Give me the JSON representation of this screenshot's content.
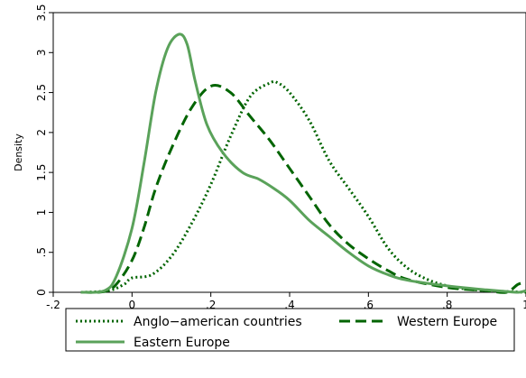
{
  "chart_data": {
    "type": "line",
    "title": "",
    "xlabel": "",
    "ylabel": "Density",
    "xlim": [
      -0.2,
      1.0
    ],
    "ylim": [
      0,
      3.5
    ],
    "x_ticks": [
      -0.2,
      0,
      0.2,
      0.4,
      0.6,
      0.8,
      1.0
    ],
    "x_tick_labels": [
      "-.2",
      "0",
      ".2",
      ".4",
      ".6",
      ".8",
      "1"
    ],
    "y_ticks": [
      0,
      0.5,
      1,
      1.5,
      2,
      2.5,
      3,
      3.5
    ],
    "y_tick_labels": [
      "0",
      ".5",
      "1",
      "1.5",
      "2",
      "2.5",
      "3",
      "3.5"
    ],
    "grid": false,
    "legend_position": "bottom",
    "series": [
      {
        "name": "Anglo−american countries",
        "style": "dotted",
        "color": "#006400",
        "x": [
          -0.13,
          -0.06,
          -0.02,
          0.0,
          0.05,
          0.1,
          0.15,
          0.2,
          0.25,
          0.3,
          0.35,
          0.37,
          0.4,
          0.45,
          0.5,
          0.55,
          0.6,
          0.65,
          0.7,
          0.75,
          0.8,
          0.85,
          0.9,
          0.95,
          1.0
        ],
        "y": [
          0.0,
          0.02,
          0.1,
          0.18,
          0.22,
          0.45,
          0.85,
          1.35,
          1.95,
          2.45,
          2.62,
          2.62,
          2.5,
          2.15,
          1.65,
          1.3,
          0.95,
          0.55,
          0.3,
          0.16,
          0.08,
          0.04,
          0.02,
          0.01,
          0.0
        ]
      },
      {
        "name": "Western Europe",
        "style": "dashed",
        "color": "#006400",
        "x": [
          -0.13,
          -0.07,
          -0.04,
          0.0,
          0.03,
          0.06,
          0.1,
          0.15,
          0.2,
          0.25,
          0.3,
          0.35,
          0.4,
          0.45,
          0.5,
          0.55,
          0.6,
          0.65,
          0.7,
          0.8,
          0.9,
          0.95,
          0.98,
          1.0
        ],
        "y": [
          0.0,
          0.01,
          0.1,
          0.4,
          0.8,
          1.3,
          1.8,
          2.3,
          2.58,
          2.5,
          2.2,
          1.9,
          1.55,
          1.2,
          0.85,
          0.6,
          0.42,
          0.27,
          0.16,
          0.06,
          0.02,
          0.0,
          0.1,
          0.12
        ]
      },
      {
        "name": "Eastern Europe",
        "style": "solid",
        "color": "#5aa25a",
        "x": [
          -0.13,
          -0.07,
          -0.04,
          0.0,
          0.03,
          0.06,
          0.09,
          0.12,
          0.14,
          0.16,
          0.19,
          0.23,
          0.28,
          0.32,
          0.36,
          0.4,
          0.45,
          0.5,
          0.55,
          0.6,
          0.65,
          0.7,
          0.8,
          0.9,
          0.95,
          0.98,
          1.0
        ],
        "y": [
          0.0,
          0.02,
          0.2,
          0.8,
          1.6,
          2.5,
          3.05,
          3.23,
          3.1,
          2.65,
          2.1,
          1.75,
          1.5,
          1.42,
          1.3,
          1.15,
          0.9,
          0.7,
          0.5,
          0.33,
          0.22,
          0.15,
          0.08,
          0.03,
          0.01,
          0.0,
          0.02
        ]
      }
    ]
  }
}
